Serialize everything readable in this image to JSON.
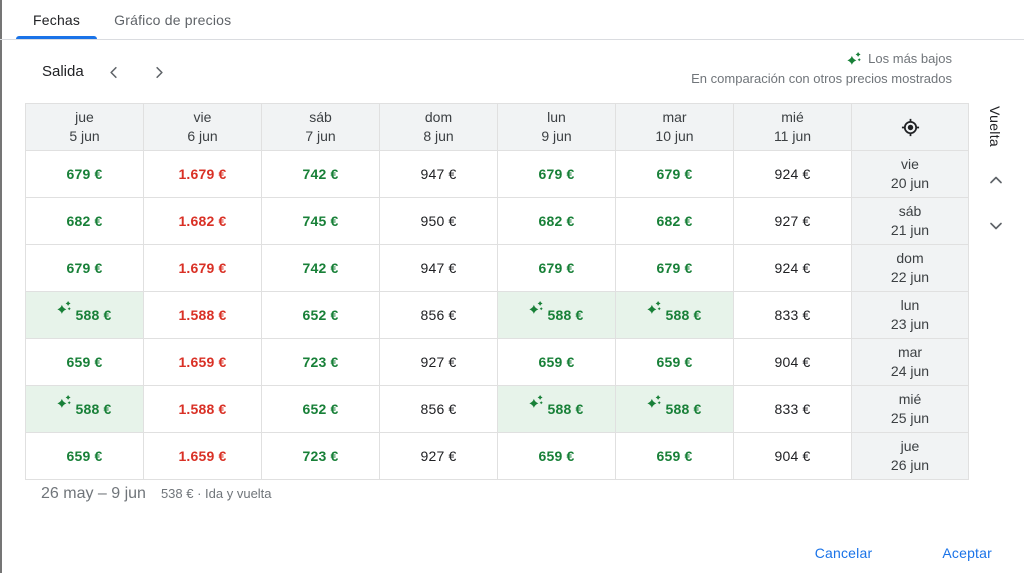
{
  "tabs": {
    "dates_label": "Fechas",
    "price_graph_label": "Gráfico de precios"
  },
  "departure": {
    "label": "Salida"
  },
  "return": {
    "label": "Vuelta"
  },
  "legend": {
    "lowest": "Los más bajos",
    "note": "En comparación con otros precios mostrados"
  },
  "grid": {
    "columns": [
      {
        "day": "jue",
        "date": "5 jun"
      },
      {
        "day": "vie",
        "date": "6 jun"
      },
      {
        "day": "sáb",
        "date": "7 jun"
      },
      {
        "day": "dom",
        "date": "8 jun"
      },
      {
        "day": "lun",
        "date": "9 jun"
      },
      {
        "day": "mar",
        "date": "10 jun"
      },
      {
        "day": "mié",
        "date": "11 jun"
      }
    ],
    "rows": [
      {
        "day": "vie",
        "date": "20 jun",
        "prices": [
          {
            "text": "679 €",
            "tone": "low"
          },
          {
            "text": "1.679 €",
            "tone": "high"
          },
          {
            "text": "742 €",
            "tone": "low"
          },
          {
            "text": "947 €",
            "tone": "typical"
          },
          {
            "text": "679 €",
            "tone": "low"
          },
          {
            "text": "679 €",
            "tone": "low"
          },
          {
            "text": "924 €",
            "tone": "typical"
          }
        ]
      },
      {
        "day": "sáb",
        "date": "21 jun",
        "prices": [
          {
            "text": "682 €",
            "tone": "low"
          },
          {
            "text": "1.682 €",
            "tone": "high"
          },
          {
            "text": "745 €",
            "tone": "low"
          },
          {
            "text": "950 €",
            "tone": "typical"
          },
          {
            "text": "682 €",
            "tone": "low"
          },
          {
            "text": "682 €",
            "tone": "low"
          },
          {
            "text": "927 €",
            "tone": "typical"
          }
        ]
      },
      {
        "day": "dom",
        "date": "22 jun",
        "prices": [
          {
            "text": "679 €",
            "tone": "low"
          },
          {
            "text": "1.679 €",
            "tone": "high"
          },
          {
            "text": "742 €",
            "tone": "low"
          },
          {
            "text": "947 €",
            "tone": "typical"
          },
          {
            "text": "679 €",
            "tone": "low"
          },
          {
            "text": "679 €",
            "tone": "low"
          },
          {
            "text": "924 €",
            "tone": "typical"
          }
        ]
      },
      {
        "day": "lun",
        "date": "23 jun",
        "prices": [
          {
            "text": "588 €",
            "tone": "lowest"
          },
          {
            "text": "1.588 €",
            "tone": "high"
          },
          {
            "text": "652 €",
            "tone": "low"
          },
          {
            "text": "856 €",
            "tone": "typical"
          },
          {
            "text": "588 €",
            "tone": "lowest"
          },
          {
            "text": "588 €",
            "tone": "lowest"
          },
          {
            "text": "833 €",
            "tone": "typical"
          }
        ]
      },
      {
        "day": "mar",
        "date": "24 jun",
        "prices": [
          {
            "text": "659 €",
            "tone": "low"
          },
          {
            "text": "1.659 €",
            "tone": "high"
          },
          {
            "text": "723 €",
            "tone": "low"
          },
          {
            "text": "927 €",
            "tone": "typical"
          },
          {
            "text": "659 €",
            "tone": "low"
          },
          {
            "text": "659 €",
            "tone": "low"
          },
          {
            "text": "904 €",
            "tone": "typical"
          }
        ]
      },
      {
        "day": "mié",
        "date": "25 jun",
        "prices": [
          {
            "text": "588 €",
            "tone": "lowest"
          },
          {
            "text": "1.588 €",
            "tone": "high"
          },
          {
            "text": "652 €",
            "tone": "low"
          },
          {
            "text": "856 €",
            "tone": "typical"
          },
          {
            "text": "588 €",
            "tone": "lowest"
          },
          {
            "text": "588 €",
            "tone": "lowest"
          },
          {
            "text": "833 €",
            "tone": "typical"
          }
        ]
      },
      {
        "day": "jue",
        "date": "26 jun",
        "prices": [
          {
            "text": "659 €",
            "tone": "low"
          },
          {
            "text": "1.659 €",
            "tone": "high"
          },
          {
            "text": "723 €",
            "tone": "low"
          },
          {
            "text": "927 €",
            "tone": "typical"
          },
          {
            "text": "659 €",
            "tone": "low"
          },
          {
            "text": "659 €",
            "tone": "low"
          },
          {
            "text": "904 €",
            "tone": "typical"
          }
        ]
      }
    ]
  },
  "footer": {
    "range": "26 may – 9 jun",
    "summary": "538 € · Ida y vuelta"
  },
  "actions": {
    "cancel": "Cancelar",
    "accept": "Aceptar"
  },
  "colors": {
    "accent_blue": "#1a73e8",
    "price_low_green": "#188038",
    "price_high_red": "#d93025",
    "lowest_bg_green": "#e7f3ea",
    "header_bg": "#f1f3f4",
    "border": "#e0e0e0",
    "muted_text": "#70757a"
  }
}
